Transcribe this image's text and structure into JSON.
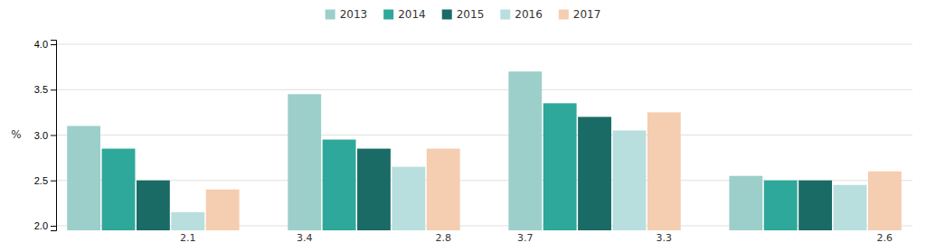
{
  "chart_data": {
    "type": "bar",
    "categories": [
      null,
      null,
      null,
      null
    ],
    "series": [
      {
        "name": "2013",
        "color": "#9dcfca",
        "values": [
          3.1,
          3.45,
          3.7,
          2.55
        ]
      },
      {
        "name": "2014",
        "color": "#2ea89a",
        "values": [
          2.85,
          2.95,
          3.35,
          2.5
        ]
      },
      {
        "name": "2015",
        "color": "#1a6b65",
        "values": [
          2.5,
          2.85,
          3.2,
          2.5
        ]
      },
      {
        "name": "2016",
        "color": "#b8dede",
        "values": [
          2.15,
          2.65,
          3.05,
          2.45
        ]
      },
      {
        "name": "2017",
        "color": "#f5cdb0",
        "values": [
          2.4,
          2.85,
          3.25,
          2.6
        ]
      }
    ],
    "annotations": [
      {
        "text": "2.1",
        "category": 0,
        "series": 3
      },
      {
        "text": "3.4",
        "category": 1,
        "series": 0
      },
      {
        "text": "2.8",
        "category": 1,
        "series": 4
      },
      {
        "text": "3.7",
        "category": 2,
        "series": 0
      },
      {
        "text": "3.3",
        "category": 2,
        "series": 4
      },
      {
        "text": "2.6",
        "category": 3,
        "series": 4
      }
    ],
    "ylabel": "%",
    "ylim": [
      1.95,
      4.05
    ],
    "yticks": [
      {
        "value": 2.0,
        "label": "2.0"
      },
      2.5,
      {
        "value": 3.0,
        "label": "3.0"
      },
      3.5,
      {
        "value": 4.0,
        "label": "4.0"
      }
    ],
    "grid": true,
    "legend": "top",
    "tick_labels": "y"
  }
}
